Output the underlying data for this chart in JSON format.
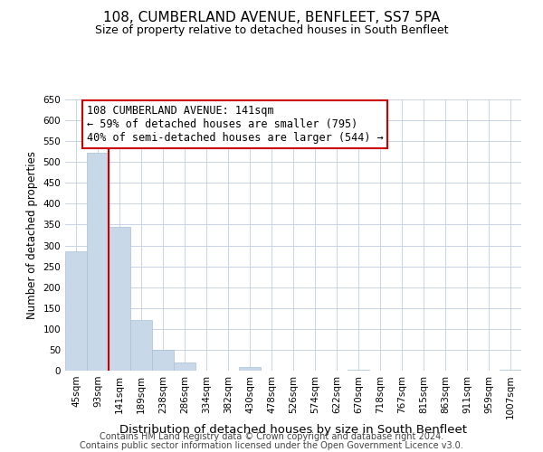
{
  "title": "108, CUMBERLAND AVENUE, BENFLEET, SS7 5PA",
  "subtitle": "Size of property relative to detached houses in South Benfleet",
  "xlabel": "Distribution of detached houses by size in South Benfleet",
  "ylabel": "Number of detached properties",
  "categories": [
    "45sqm",
    "93sqm",
    "141sqm",
    "189sqm",
    "238sqm",
    "286sqm",
    "334sqm",
    "382sqm",
    "430sqm",
    "478sqm",
    "526sqm",
    "574sqm",
    "622sqm",
    "670sqm",
    "718sqm",
    "767sqm",
    "815sqm",
    "863sqm",
    "911sqm",
    "959sqm",
    "1007sqm"
  ],
  "values": [
    285,
    522,
    345,
    121,
    49,
    20,
    0,
    0,
    8,
    0,
    0,
    0,
    0,
    2,
    0,
    0,
    0,
    0,
    0,
    0,
    3
  ],
  "bar_color": "#c8d8e8",
  "bar_edge_color": "#a8c0d8",
  "property_line_color": "#cc0000",
  "property_line_index": 1,
  "ylim": [
    0,
    650
  ],
  "yticks": [
    0,
    50,
    100,
    150,
    200,
    250,
    300,
    350,
    400,
    450,
    500,
    550,
    600,
    650
  ],
  "annotation_box_text": "108 CUMBERLAND AVENUE: 141sqm\n← 59% of detached houses are smaller (795)\n40% of semi-detached houses are larger (544) →",
  "annotation_box_color": "#ffffff",
  "annotation_box_edge_color": "#cc0000",
  "footer_line1": "Contains HM Land Registry data © Crown copyright and database right 2024.",
  "footer_line2": "Contains public sector information licensed under the Open Government Licence v3.0.",
  "background_color": "#ffffff",
  "grid_color": "#c8d4e4",
  "title_fontsize": 11,
  "subtitle_fontsize": 9,
  "xlabel_fontsize": 9.5,
  "ylabel_fontsize": 8.5,
  "tick_fontsize": 7.5,
  "annotation_fontsize": 8.5,
  "footer_fontsize": 7
}
